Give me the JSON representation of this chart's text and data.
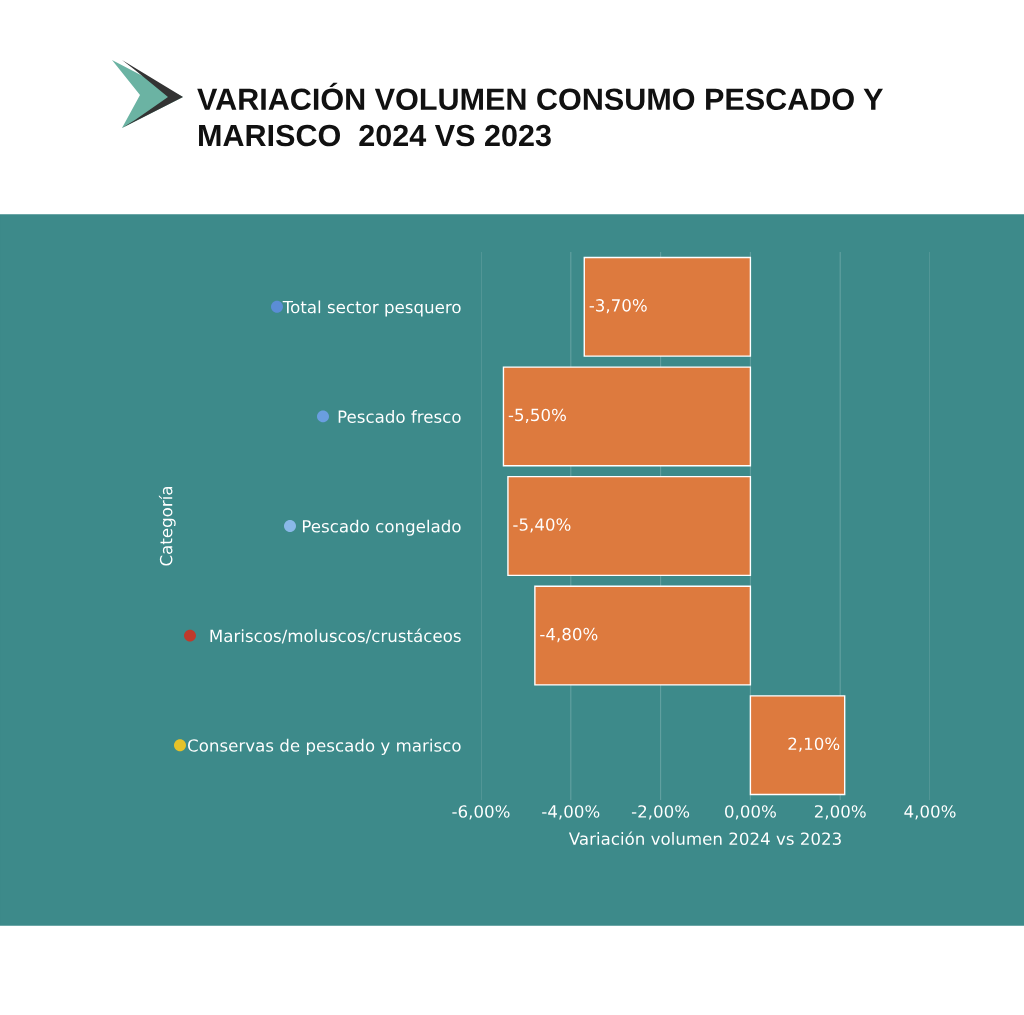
{
  "chart_data": {
    "type": "bar",
    "orientation": "horizontal",
    "title": "VARIACIÓN VOLUMEN CONSUMO PESCADO Y\nMARISCO  2024 VS 2023",
    "categories": [
      "Total sector pesquero",
      "Pescado fresco",
      "Pescado congelado",
      "Mariscos/moluscos/crustáceos",
      "Conservas de pescado y marisco"
    ],
    "values": [
      -3.7,
      -5.5,
      -5.4,
      -4.8,
      2.1
    ],
    "value_labels": [
      "-3,70%",
      "-5,50%",
      "-5,40%",
      "-4,80%",
      "2,10%"
    ],
    "color": "#dd7a3e",
    "xlabel": "Variación volumen 2024 vs 2023",
    "ylabel": "Categoría",
    "xlim": [
      -6,
      4
    ],
    "xticks": [
      {
        "value": -6,
        "label": "-6,00%"
      },
      {
        "value": -4,
        "label": "-4,00%"
      },
      {
        "value": -2,
        "label": "-2,00%"
      },
      {
        "value": 0,
        "label": "0,00%"
      },
      {
        "value": 2,
        "label": "2,00%"
      },
      {
        "value": 4,
        "label": "4,00%"
      }
    ],
    "grid": "x"
  }
}
